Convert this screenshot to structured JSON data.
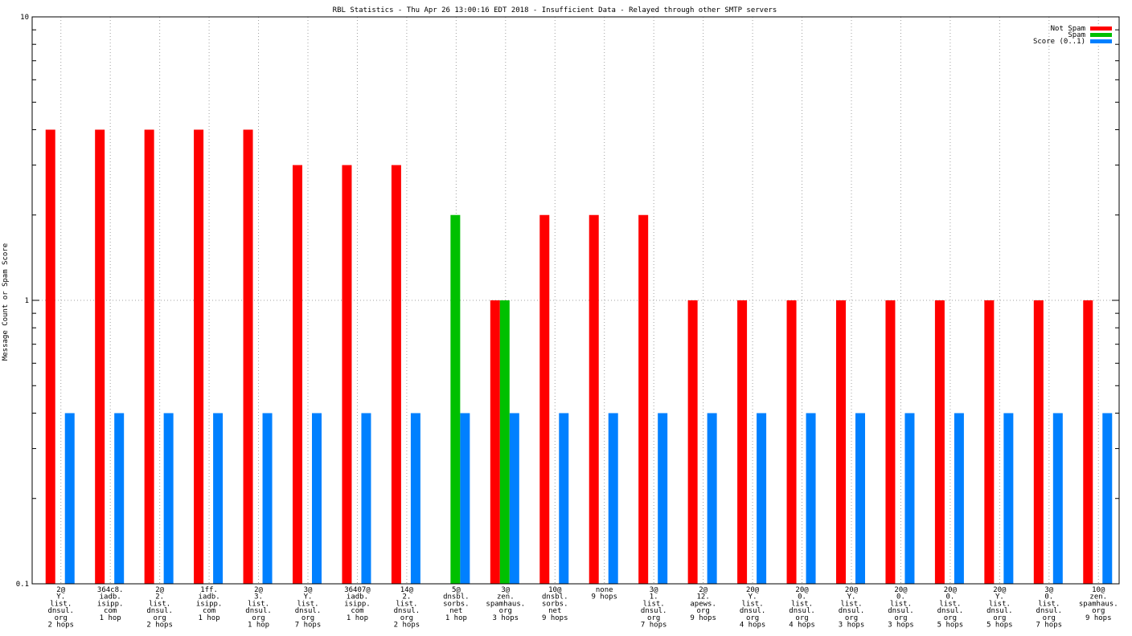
{
  "chart_data": {
    "type": "bar",
    "title": "RBL Statistics - Thu Apr 26 13:00:16 EDT 2018 - Insufficient Data - Relayed through other SMTP servers",
    "xlabel": "",
    "ylabel": "Message Count or Spam Score",
    "yscale": "log",
    "ylim": [
      0.1,
      10
    ],
    "yticks": [
      {
        "value": 0.1,
        "label": "0.1"
      },
      {
        "value": 1,
        "label": "1"
      },
      {
        "value": 10,
        "label": "10"
      }
    ],
    "grid": true,
    "legend_position": "top-right",
    "categories": [
      [
        "2@",
        "Y.",
        "list.",
        "dnsul.",
        "org",
        "2 hops"
      ],
      [
        "364c8.",
        "iadb.",
        "isipp.",
        "com",
        "1 hop"
      ],
      [
        "2@",
        "2.",
        "list.",
        "dnsul.",
        "org",
        "2 hops"
      ],
      [
        "1ff.",
        "iadb.",
        "isipp.",
        "com",
        "1 hop"
      ],
      [
        "2@",
        "3.",
        "list.",
        "dnsul.",
        "org",
        "1 hop"
      ],
      [
        "3@",
        "Y.",
        "list.",
        "dnsul.",
        "org",
        "7 hops"
      ],
      [
        "36407@",
        "iadb.",
        "isipp.",
        "com",
        "1 hop"
      ],
      [
        "14@",
        "2.",
        "list.",
        "dnsul.",
        "org",
        "2 hops"
      ],
      [
        "5@",
        "dnsbl.",
        "sorbs.",
        "net",
        "1 hop"
      ],
      [
        "3@",
        "zen.",
        "spamhaus.",
        "org",
        "3 hops"
      ],
      [
        "10@",
        "dnsbl.",
        "sorbs.",
        "net",
        "9 hops"
      ],
      [
        "none",
        "9 hops"
      ],
      [
        "3@",
        "1.",
        "list.",
        "dnsul.",
        "org",
        "7 hops"
      ],
      [
        "2@",
        "12.",
        "apews.",
        "org",
        "9 hops"
      ],
      [
        "20@",
        "Y.",
        "list.",
        "dnsul.",
        "org",
        "4 hops"
      ],
      [
        "20@",
        "0.",
        "list.",
        "dnsul.",
        "org",
        "4 hops"
      ],
      [
        "20@",
        "Y.",
        "list.",
        "dnsul.",
        "org",
        "3 hops"
      ],
      [
        "20@",
        "0.",
        "list.",
        "dnsul.",
        "org",
        "3 hops"
      ],
      [
        "20@",
        "0.",
        "list.",
        "dnsul.",
        "org",
        "5 hops"
      ],
      [
        "20@",
        "Y.",
        "list.",
        "dnsul.",
        "org",
        "5 hops"
      ],
      [
        "3@",
        "0.",
        "list.",
        "dnsul.",
        "org",
        "7 hops"
      ],
      [
        "10@",
        "zen.",
        "spamhaus.",
        "org",
        "9 hops"
      ]
    ],
    "series": [
      {
        "name": "Not Spam",
        "color": "#ff0000",
        "values": [
          4,
          4,
          4,
          4,
          4,
          3,
          3,
          3,
          null,
          1,
          2,
          2,
          2,
          1,
          1,
          1,
          1,
          1,
          1,
          1,
          1,
          1
        ]
      },
      {
        "name": "Spam",
        "color": "#00c000",
        "values": [
          null,
          null,
          null,
          null,
          null,
          null,
          null,
          null,
          2,
          1,
          null,
          null,
          null,
          null,
          null,
          null,
          null,
          null,
          null,
          null,
          null,
          null
        ]
      },
      {
        "name": "Score (0..1)",
        "color": "#0080ff",
        "values": [
          0.4,
          0.4,
          0.4,
          0.4,
          0.4,
          0.4,
          0.4,
          0.4,
          0.4,
          0.4,
          0.4,
          0.4,
          0.4,
          0.4,
          0.4,
          0.4,
          0.4,
          0.4,
          0.4,
          0.4,
          0.4,
          0.4
        ]
      }
    ]
  }
}
